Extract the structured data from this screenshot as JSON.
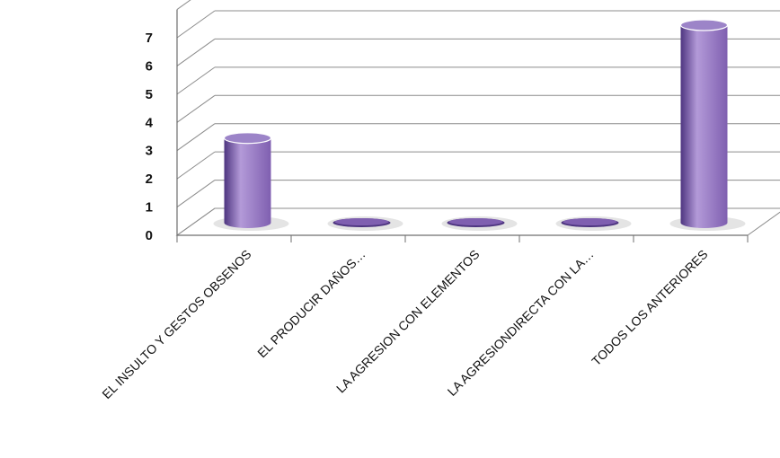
{
  "chart_data": {
    "type": "bar",
    "style": "3d-cylinder",
    "categories": [
      "EL INSULTO Y GESTOS OBSENOS",
      "EL PRODUCIR DAÑOS…",
      "LA AGRESION CON ELEMENTOS",
      "LA AGRESIONDIRECTA  CON LA…",
      "TODOS LOS ANTERIORES"
    ],
    "values": [
      3,
      0,
      0,
      0,
      7
    ],
    "title": "",
    "xlabel": "",
    "ylabel": "",
    "ylim": [
      0,
      7
    ],
    "yticks": [
      "0",
      "1",
      "2",
      "3",
      "4",
      "5",
      "6",
      "7"
    ],
    "grid": true,
    "legend": "none",
    "colors": {
      "bar": "#7f5fb0",
      "bar_dark": "#4e3580",
      "bar_light": "#b39ad8",
      "bar_top": "#9c84c8",
      "grid": "#8c8c8c",
      "axis": "#6f6f6f"
    }
  }
}
